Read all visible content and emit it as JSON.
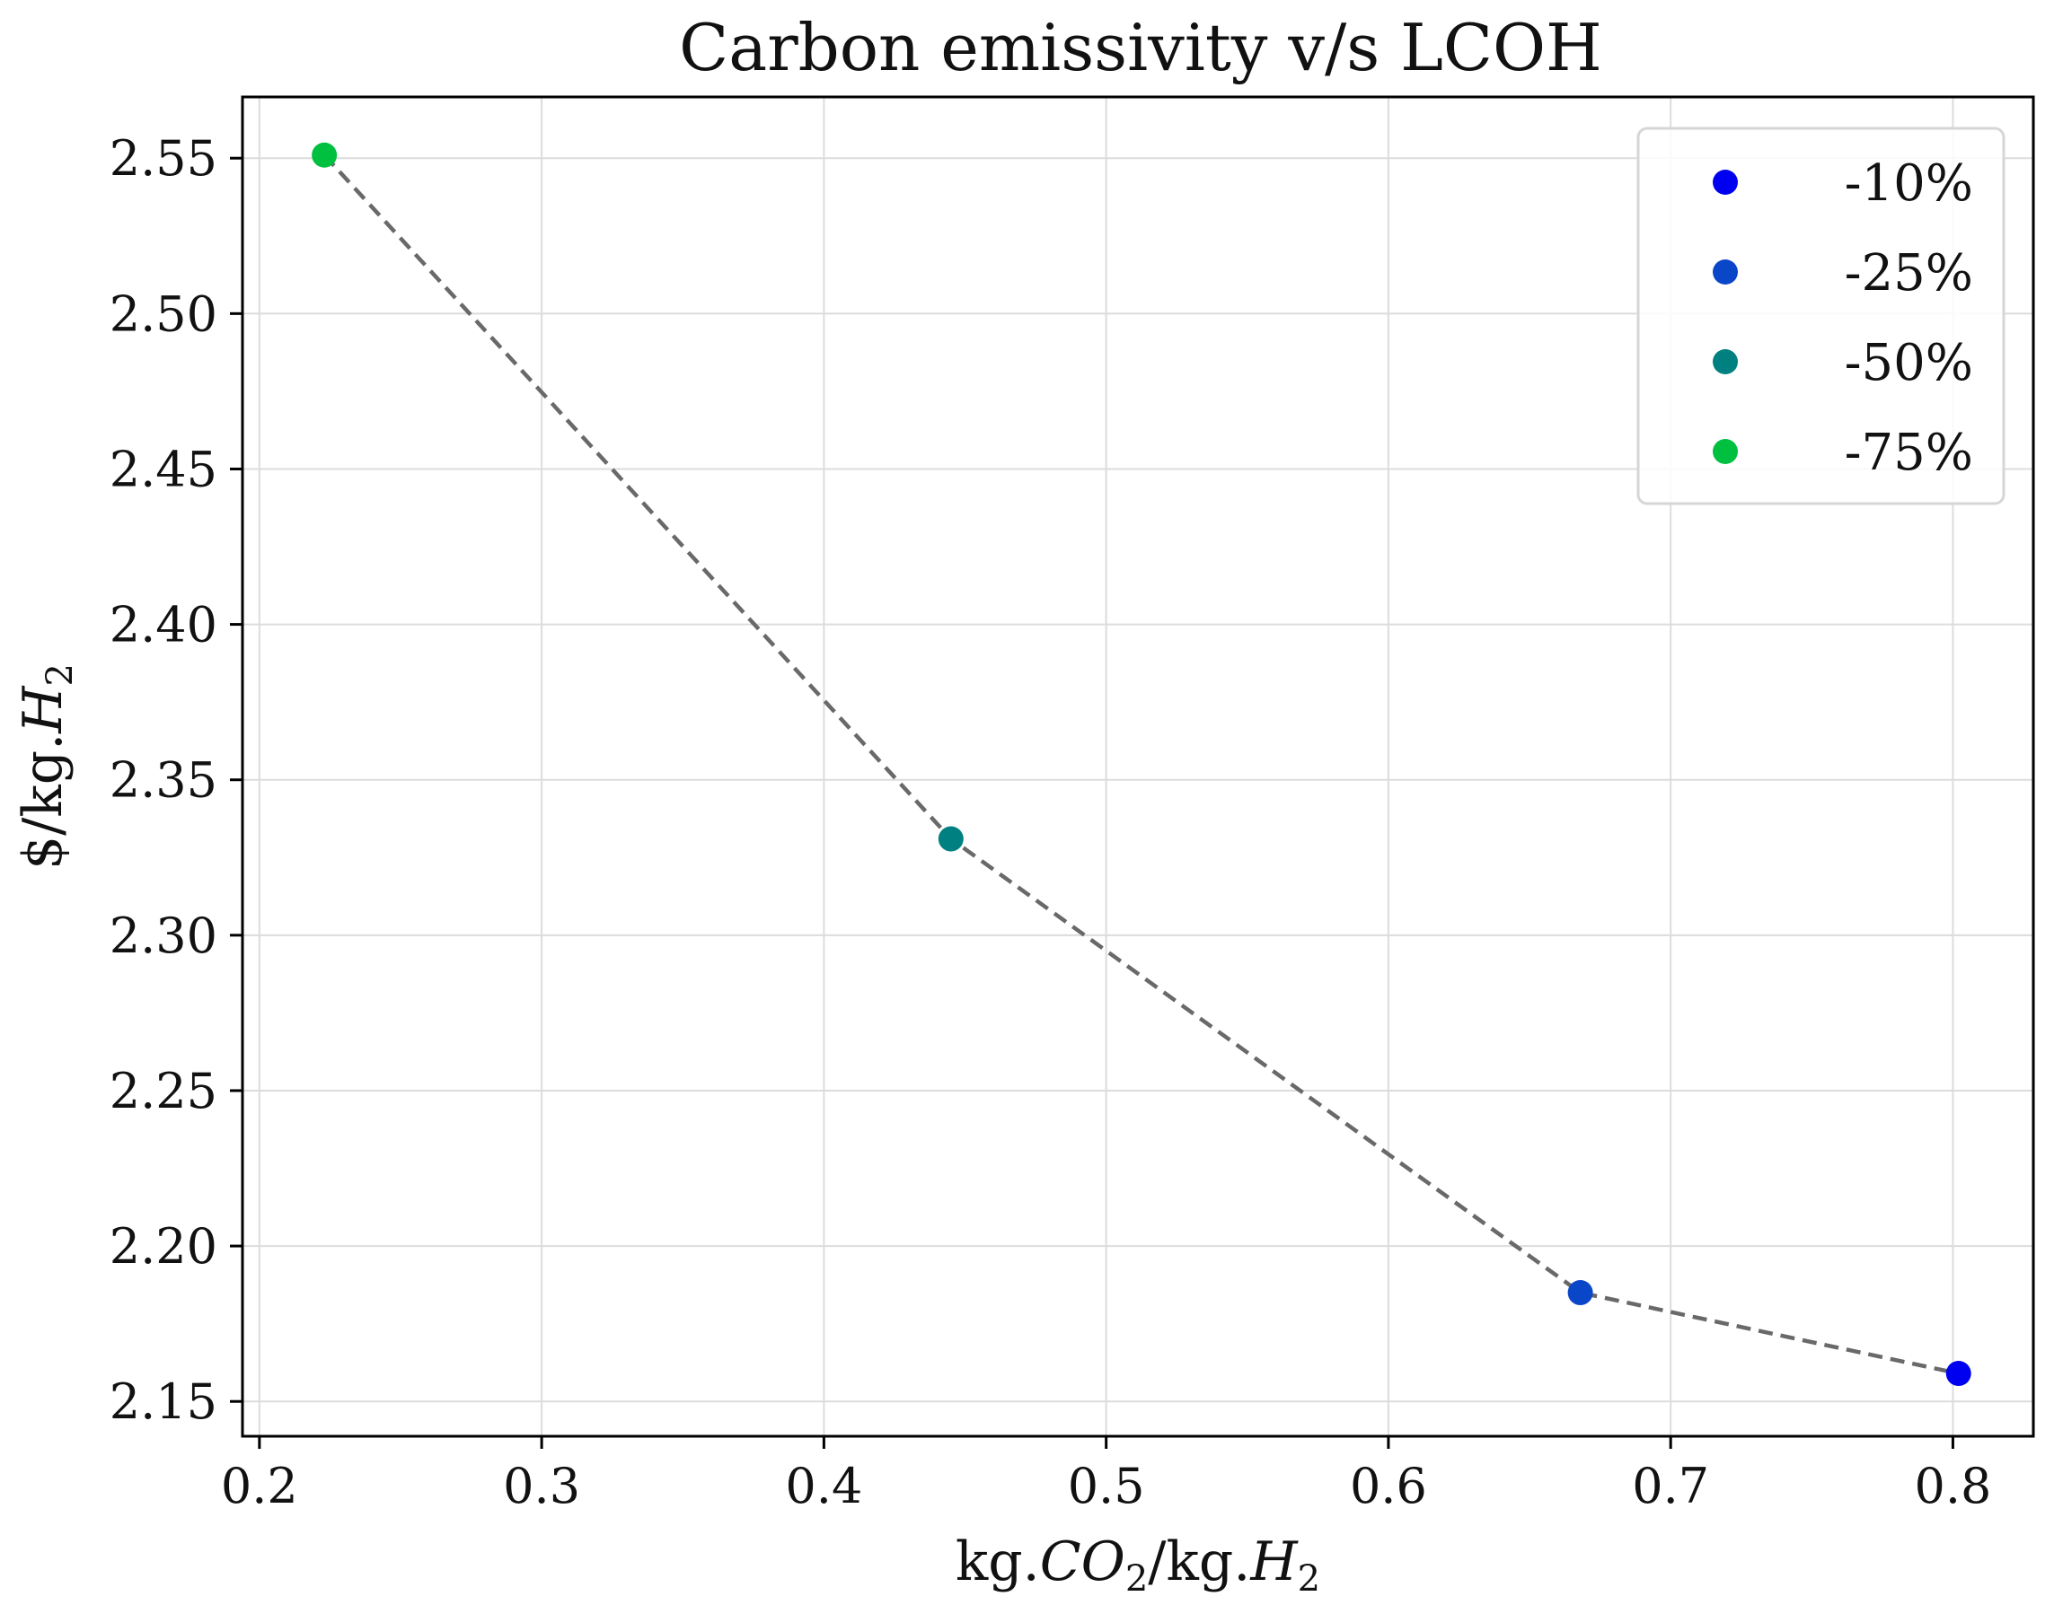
{
  "chart_data": {
    "type": "scatter",
    "title": "Carbon emissivity v/s LCOH",
    "xlabel": {
      "prefix": "kg.",
      "italic1": "CO",
      "sub1": "2",
      "mid": "/kg.",
      "italic2": "H",
      "sub2": "2"
    },
    "ylabel": {
      "prefix": "$/kg.",
      "italic": "H",
      "sub": "2"
    },
    "xlim": [
      0.194,
      0.8285
    ],
    "ylim": [
      2.1388,
      2.5697
    ],
    "xticks": [
      0.2,
      0.3,
      0.4,
      0.5,
      0.6,
      0.7,
      0.8
    ],
    "xtick_labels": [
      "0.2",
      "0.3",
      "0.4",
      "0.5",
      "0.6",
      "0.7",
      "0.8"
    ],
    "yticks": [
      2.15,
      2.2,
      2.25,
      2.3,
      2.35,
      2.4,
      2.45,
      2.5,
      2.55
    ],
    "ytick_labels": [
      "2.15",
      "2.20",
      "2.25",
      "2.30",
      "2.35",
      "2.40",
      "2.45",
      "2.50",
      "2.55"
    ],
    "grid": true,
    "legend_position": "top-right",
    "connector": {
      "style": "dashed",
      "color": "#696969"
    },
    "series": [
      {
        "name": "-10%",
        "x": 0.802,
        "y": 2.159,
        "color": "#0000f0"
      },
      {
        "name": "-25%",
        "x": 0.668,
        "y": 2.185,
        "color": "#0a46c8"
      },
      {
        "name": "-50%",
        "x": 0.445,
        "y": 2.331,
        "color": "#008080"
      },
      {
        "name": "-75%",
        "x": 0.223,
        "y": 2.551,
        "color": "#00c040"
      }
    ]
  }
}
